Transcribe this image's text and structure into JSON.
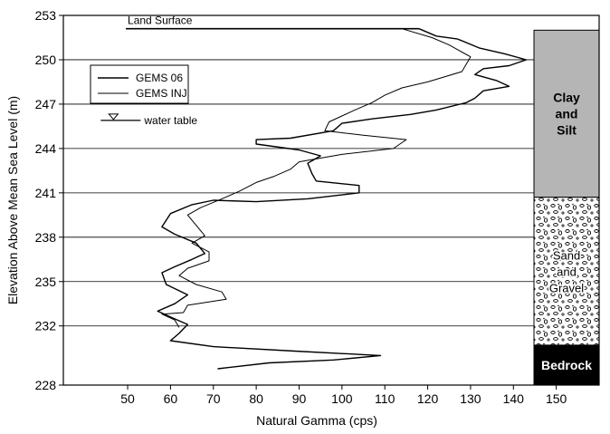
{
  "chart_data": {
    "type": "line",
    "title": "",
    "xlabel": "Natural Gamma (cps)",
    "ylabel": "Elevation Above Mean Sea Level (m)",
    "xlim": [
      35,
      160
    ],
    "ylim": [
      228,
      253
    ],
    "x_ticks": [
      50,
      60,
      70,
      80,
      90,
      100,
      110,
      120,
      130,
      140,
      150
    ],
    "y_ticks": [
      228,
      232,
      235,
      238,
      241,
      244,
      247,
      250,
      253
    ],
    "horizontal_gridlines": true,
    "legend_position": "top-left",
    "series": [
      {
        "name": "GEMS 06",
        "color": "#000000",
        "points": [
          [
            118,
            252.1
          ],
          [
            122,
            251.6
          ],
          [
            127,
            251.4
          ],
          [
            132,
            250.8
          ],
          [
            138,
            250.4
          ],
          [
            143,
            250.0
          ],
          [
            139,
            249.6
          ],
          [
            133,
            249.4
          ],
          [
            131,
            249.0
          ],
          [
            136,
            248.6
          ],
          [
            139,
            248.2
          ],
          [
            133,
            247.9
          ],
          [
            131,
            247.4
          ],
          [
            129,
            247.1
          ],
          [
            122,
            246.6
          ],
          [
            116,
            246.3
          ],
          [
            107,
            246.0
          ],
          [
            100,
            245.7
          ],
          [
            98,
            245.2
          ],
          [
            88,
            244.7
          ],
          [
            80,
            244.6
          ],
          [
            80,
            244.3
          ],
          [
            90,
            243.9
          ],
          [
            95,
            243.5
          ],
          [
            92,
            243.0
          ],
          [
            93,
            242.3
          ],
          [
            94,
            241.8
          ],
          [
            104,
            241.5
          ],
          [
            104,
            241.0
          ],
          [
            92,
            240.6
          ],
          [
            80,
            240.4
          ],
          [
            70,
            240.5
          ],
          [
            65,
            240.2
          ],
          [
            60,
            239.6
          ],
          [
            58,
            238.7
          ],
          [
            61,
            238.2
          ],
          [
            66,
            237.6
          ],
          [
            68,
            236.9
          ],
          [
            65,
            236.5
          ],
          [
            61,
            236.0
          ],
          [
            58,
            235.6
          ],
          [
            59,
            234.8
          ],
          [
            64,
            234.1
          ],
          [
            61,
            233.5
          ],
          [
            57,
            233.0
          ],
          [
            60,
            232.6
          ],
          [
            64,
            232.1
          ],
          [
            62,
            231.5
          ],
          [
            60,
            231.0
          ],
          [
            70,
            230.6
          ],
          [
            89,
            230.3
          ],
          [
            109,
            230.0
          ],
          [
            98,
            229.7
          ],
          [
            83,
            229.5
          ],
          [
            71,
            229.1
          ]
        ]
      },
      {
        "name": "GEMS INJ",
        "color": "#000000",
        "points": [
          [
            114,
            252.1
          ],
          [
            121,
            251.5
          ],
          [
            125,
            251.0
          ],
          [
            130,
            250.2
          ],
          [
            128,
            249.2
          ],
          [
            120,
            248.5
          ],
          [
            114,
            248.1
          ],
          [
            110,
            247.6
          ],
          [
            107,
            247.1
          ],
          [
            103,
            246.6
          ],
          [
            100,
            246.2
          ],
          [
            97,
            245.8
          ],
          [
            96,
            245.2
          ],
          [
            105,
            244.9
          ],
          [
            115,
            244.6
          ],
          [
            112,
            244.0
          ],
          [
            100,
            243.6
          ],
          [
            90,
            243.1
          ],
          [
            88,
            242.6
          ],
          [
            84,
            242.1
          ],
          [
            80,
            241.7
          ],
          [
            76,
            241.1
          ],
          [
            72,
            240.6
          ],
          [
            67,
            240.0
          ],
          [
            64,
            239.5
          ],
          [
            66,
            238.8
          ],
          [
            68,
            238.1
          ],
          [
            65,
            237.6
          ],
          [
            69,
            237.0
          ],
          [
            69,
            236.4
          ],
          [
            64,
            235.9
          ],
          [
            62,
            235.4
          ],
          [
            66,
            234.8
          ],
          [
            72,
            234.3
          ],
          [
            73,
            233.8
          ],
          [
            64,
            233.4
          ],
          [
            63,
            232.9
          ],
          [
            58,
            232.8
          ],
          [
            61,
            232.4
          ],
          [
            62,
            231.9
          ]
        ]
      }
    ],
    "annotations": [
      {
        "text": "Land Surface",
        "x": 50,
        "y": 252.1
      },
      {
        "text": "water table",
        "x": 45,
        "y": 245.9
      }
    ],
    "lithology": [
      {
        "label": "Clay and Silt",
        "label_lines": [
          "Clay",
          "and",
          "Silt"
        ],
        "top": 252,
        "bottom": 240.7,
        "pattern": "gray"
      },
      {
        "label": "Sand and Gravel",
        "label_lines": [
          "Sand",
          "and",
          "Gravel"
        ],
        "top": 240.7,
        "bottom": 230.7,
        "pattern": "gravel"
      },
      {
        "label": "Bedrock",
        "label_lines": [
          "Bedrock"
        ],
        "top": 230.7,
        "bottom": 228,
        "pattern": "black"
      }
    ]
  }
}
